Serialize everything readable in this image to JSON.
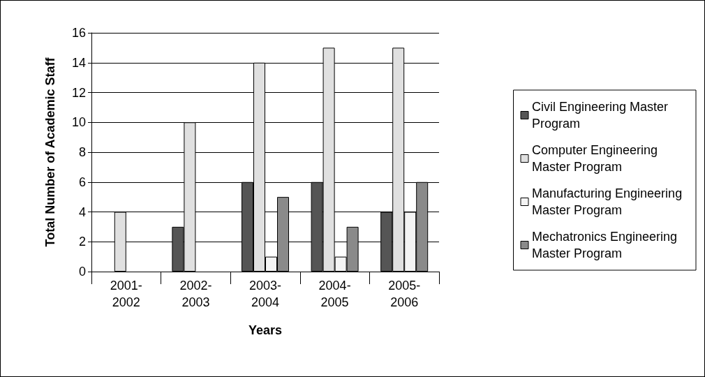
{
  "chart_data": {
    "type": "bar",
    "xlabel": "Years",
    "ylabel": "Total Number of Academic Staff",
    "categories": [
      "2001-2002",
      "2002-2003",
      "2003-2004",
      "2004-2005",
      "2005-2006"
    ],
    "series": [
      {
        "name": "Civil Engineering Master Program",
        "color": "#555555",
        "values": [
          null,
          3,
          6,
          6,
          4
        ]
      },
      {
        "name": "Computer Engineering Master Program",
        "color": "#e0e0e0",
        "values": [
          4,
          10,
          14,
          15,
          15
        ]
      },
      {
        "name": "Manufacturing Engineering Master Program",
        "color": "#f4f4f4",
        "values": [
          null,
          null,
          1,
          1,
          4
        ]
      },
      {
        "name": "Mechatronics Engineering Master Program",
        "color": "#8a8a8a",
        "values": [
          null,
          null,
          5,
          3,
          6
        ]
      }
    ],
    "ylim": [
      0,
      16
    ],
    "yticks": [
      0,
      2,
      4,
      6,
      8,
      10,
      12,
      14,
      16
    ],
    "grid": "y",
    "legend": "right"
  }
}
